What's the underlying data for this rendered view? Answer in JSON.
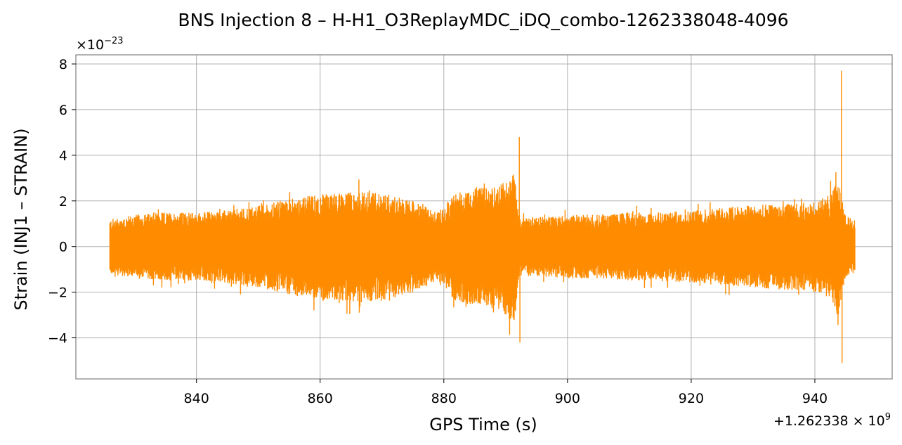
{
  "chart_data": {
    "type": "line",
    "title": "BNS Injection 8 – H-H1_O3ReplayMDC_iDQ_combo-1262338048-4096",
    "xlabel": "GPS Time (s)",
    "ylabel": "Strain (INJ1 – STRAIN)",
    "x_offset_label": {
      "base": "+1.262338 × 10",
      "exp": "9"
    },
    "y_scale_label": {
      "base": "×10",
      "exp": "−23"
    },
    "xlim": [
      820.5,
      952.5
    ],
    "ylim": [
      -5.8,
      8.4
    ],
    "xticks": [
      840,
      860,
      880,
      900,
      920,
      940
    ],
    "xtick_labels": [
      "840",
      "860",
      "880",
      "900",
      "920",
      "940"
    ],
    "yticks": [
      -4,
      -2,
      0,
      2,
      4,
      6,
      8
    ],
    "ytick_labels": [
      "−4",
      "−2",
      "0",
      "2",
      "4",
      "6",
      "8"
    ],
    "grid": true,
    "series": [
      {
        "color": "#ff8c00",
        "x_range": [
          826.0,
          946.5
        ],
        "envelope": {
          "x": [
            826,
            830,
            835,
            840,
            845,
            850,
            855,
            860,
            865,
            870,
            875,
            879,
            880,
            882,
            885,
            888,
            890,
            891.5,
            892,
            892.5,
            893,
            895,
            900,
            905,
            910,
            915,
            920,
            925,
            930,
            935,
            938,
            940,
            942,
            943,
            943.8,
            944.2,
            944.6,
            945,
            946.5
          ],
          "upper": [
            1.2,
            1.4,
            1.5,
            1.5,
            1.6,
            1.8,
            2.1,
            2.3,
            2.4,
            2.4,
            2.0,
            1.5,
            1.8,
            2.4,
            2.6,
            2.6,
            2.9,
            3.3,
            1.5,
            1.3,
            1.3,
            1.3,
            1.4,
            1.4,
            1.5,
            1.5,
            1.6,
            1.7,
            1.8,
            1.9,
            1.9,
            2.0,
            2.2,
            2.5,
            3.0,
            2.6,
            1.8,
            1.3,
            1.2
          ],
          "lower": [
            -1.2,
            -1.4,
            -1.5,
            -1.5,
            -1.6,
            -1.8,
            -2.1,
            -2.3,
            -2.4,
            -2.4,
            -2.0,
            -1.5,
            -1.8,
            -2.4,
            -2.6,
            -2.8,
            -3.0,
            -3.4,
            -1.5,
            -1.3,
            -1.3,
            -1.3,
            -1.4,
            -1.4,
            -1.5,
            -1.5,
            -1.6,
            -1.7,
            -1.8,
            -1.9,
            -1.9,
            -2.0,
            -2.2,
            -2.5,
            -3.0,
            -2.6,
            -1.8,
            -1.3,
            -1.2
          ]
        },
        "peaks": [
          {
            "x": 892.2,
            "y": 4.8
          },
          {
            "x": 892.3,
            "y": -4.2
          },
          {
            "x": 944.3,
            "y": 7.7
          },
          {
            "x": 944.4,
            "y": -5.1
          }
        ]
      }
    ]
  }
}
